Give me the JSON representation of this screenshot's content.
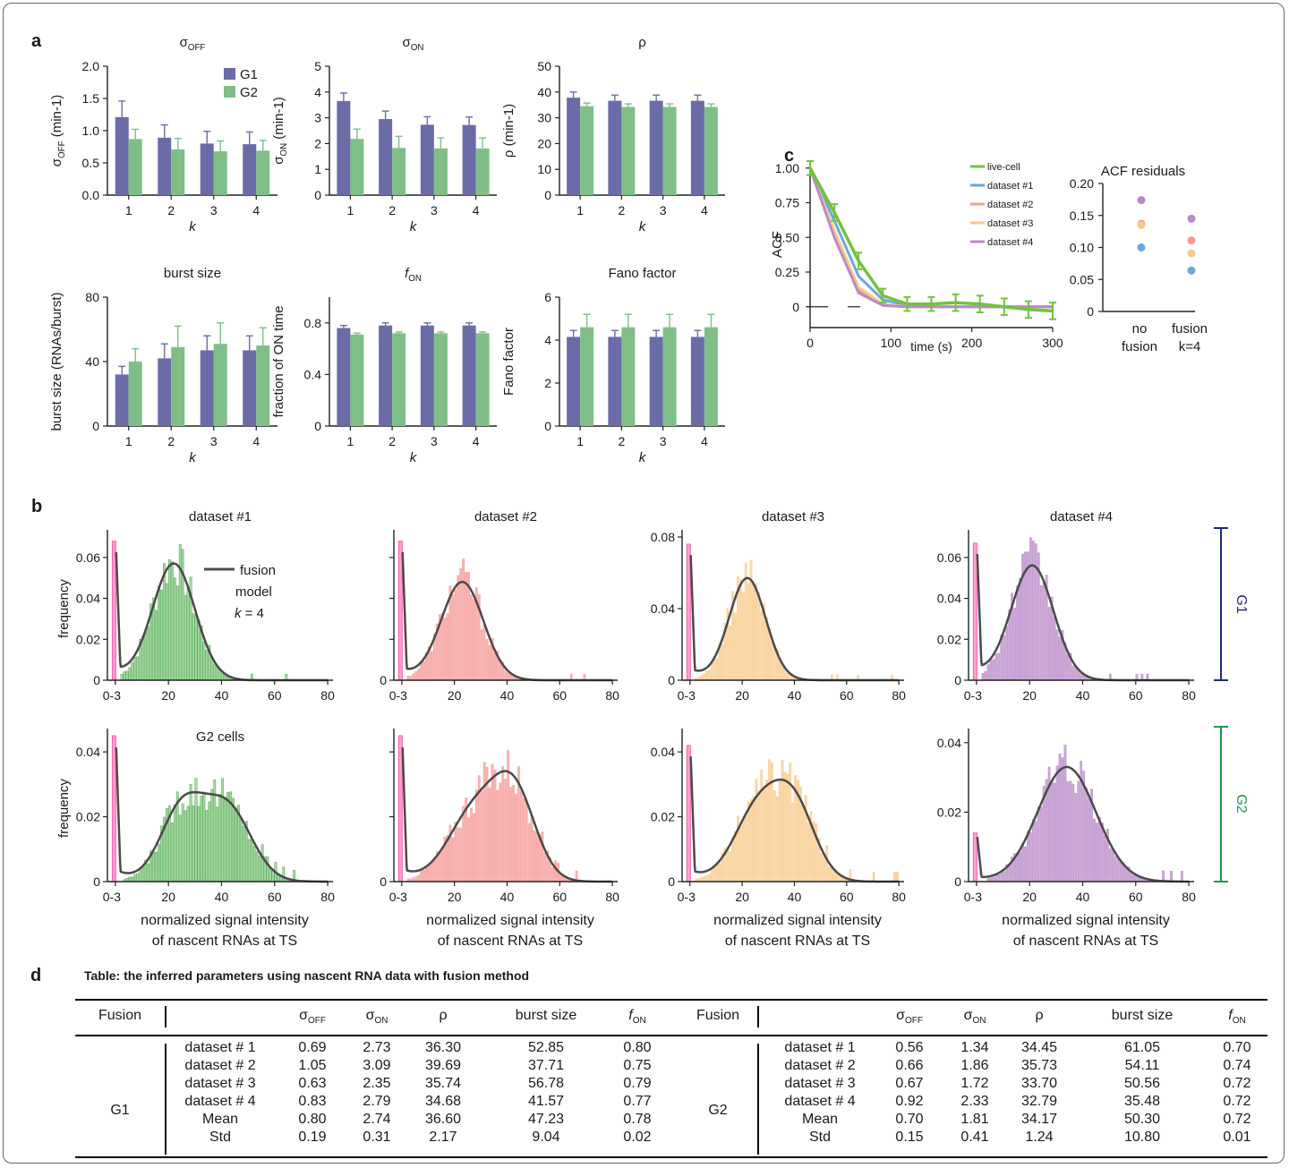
{
  "panel_letters": {
    "a": "a",
    "b": "b",
    "c": "c",
    "d": "d"
  },
  "colors": {
    "g1": "#6b6ba8",
    "g2": "#7fbf87",
    "g1_axis": "#1e2a7e",
    "g2_axis": "#1a9a4a",
    "zero_bin": "#ff5fae",
    "fit_line": "#4a4a4a",
    "ds1": "#86cc82",
    "ds2": "#f59a96",
    "ds3": "#f8c98a",
    "ds4": "#b98ac9",
    "live": "#72c23e",
    "ds1_line": "#6aa8dd"
  },
  "labels": {
    "k": "k",
    "x_hist": [
      "normalized signal intensity",
      "of nascent RNAs at TS"
    ],
    "frequency": "frequency",
    "g1_bracket": "G1",
    "g2_bracket": "G2",
    "g2_cells": "G2 cells",
    "fusion_legend": [
      "fusion",
      "model",
      "k = 4"
    ],
    "table_title": "Table: the inferred parameters using nascent RNA data with fusion method"
  },
  "chart_data": [
    {
      "id": "sigma_off",
      "type": "bar",
      "title": "σOFF",
      "ylabel": "σOFF (min-1)",
      "xlabel": "k",
      "categories": [
        "1",
        "2",
        "3",
        "4"
      ],
      "ylim": [
        0,
        2.0
      ],
      "yticks": [
        "0.0",
        "0.5",
        "1.0",
        "1.5",
        "2.0"
      ],
      "ytick_vals": [
        0,
        0.5,
        1.0,
        1.5,
        2.0
      ],
      "series": [
        {
          "name": "G1",
          "values": [
            1.21,
            0.89,
            0.8,
            0.79
          ],
          "errors": [
            0.25,
            0.2,
            0.19,
            0.19
          ]
        },
        {
          "name": "G2",
          "values": [
            0.87,
            0.71,
            0.68,
            0.69
          ],
          "errors": [
            0.15,
            0.17,
            0.16,
            0.16
          ]
        }
      ]
    },
    {
      "id": "sigma_on",
      "type": "bar",
      "title": "σON",
      "ylabel": "σON (min-1)",
      "xlabel": "k",
      "categories": [
        "1",
        "2",
        "3",
        "4"
      ],
      "ylim": [
        0,
        5
      ],
      "yticks": [
        "0",
        "1",
        "2",
        "3",
        "4",
        "5"
      ],
      "ytick_vals": [
        0,
        1,
        2,
        3,
        4,
        5
      ],
      "series": [
        {
          "name": "G1",
          "values": [
            3.65,
            2.95,
            2.73,
            2.72
          ],
          "errors": [
            0.31,
            0.31,
            0.31,
            0.31
          ]
        },
        {
          "name": "G2",
          "values": [
            2.18,
            1.83,
            1.81,
            1.81
          ],
          "errors": [
            0.38,
            0.45,
            0.41,
            0.41
          ]
        }
      ]
    },
    {
      "id": "rho",
      "type": "bar",
      "title": "ρ",
      "ylabel": "ρ (min-1)",
      "xlabel": "k",
      "categories": [
        "1",
        "2",
        "3",
        "4"
      ],
      "ylim": [
        0,
        50
      ],
      "yticks": [
        "0",
        "10",
        "20",
        "30",
        "40",
        "50"
      ],
      "ytick_vals": [
        0,
        10,
        20,
        30,
        40,
        50
      ],
      "series": [
        {
          "name": "G1",
          "values": [
            37.8,
            36.6,
            36.6,
            36.6
          ],
          "errors": [
            2.2,
            2.2,
            2.2,
            2.2
          ]
        },
        {
          "name": "G2",
          "values": [
            34.5,
            34.2,
            34.2,
            34.2
          ],
          "errors": [
            1.2,
            1.2,
            1.2,
            1.2
          ]
        }
      ]
    },
    {
      "id": "burst_size",
      "type": "bar",
      "title": "burst size",
      "ylabel": "burst size (RNAs/burst)",
      "xlabel": "k",
      "categories": [
        "1",
        "2",
        "3",
        "4"
      ],
      "ylim": [
        0,
        80
      ],
      "yticks": [
        "0",
        "40",
        "80"
      ],
      "ytick_vals": [
        0,
        40,
        80
      ],
      "series": [
        {
          "name": "G1",
          "values": [
            32,
            42,
            47,
            47
          ],
          "errors": [
            5,
            9,
            9,
            9
          ]
        },
        {
          "name": "G2",
          "values": [
            40,
            49,
            51,
            50
          ],
          "errors": [
            8,
            13,
            13,
            11
          ]
        }
      ]
    },
    {
      "id": "f_on",
      "type": "bar",
      "title": "fON",
      "ylabel": "fraction of ON time",
      "xlabel": "k",
      "categories": [
        "1",
        "2",
        "3",
        "4"
      ],
      "ylim": [
        0,
        1.0
      ],
      "yticks": [
        "0",
        "0.4",
        "0.8"
      ],
      "ytick_vals": [
        0,
        0.4,
        0.8
      ],
      "series": [
        {
          "name": "G1",
          "values": [
            0.76,
            0.78,
            0.78,
            0.78
          ],
          "errors": [
            0.02,
            0.02,
            0.02,
            0.02
          ]
        },
        {
          "name": "G2",
          "values": [
            0.71,
            0.72,
            0.72,
            0.72
          ],
          "errors": [
            0.01,
            0.01,
            0.01,
            0.01
          ]
        }
      ]
    },
    {
      "id": "fano",
      "type": "bar",
      "title": "Fano factor",
      "ylabel": "Fano factor",
      "xlabel": "k",
      "categories": [
        "1",
        "2",
        "3",
        "4"
      ],
      "ylim": [
        0,
        6
      ],
      "yticks": [
        "0",
        "2",
        "4",
        "6"
      ],
      "ytick_vals": [
        0,
        2,
        4,
        6
      ],
      "series": [
        {
          "name": "G1",
          "values": [
            4.15,
            4.15,
            4.15,
            4.15
          ],
          "errors": [
            0.3,
            0.3,
            0.3,
            0.3
          ]
        },
        {
          "name": "G2",
          "values": [
            4.6,
            4.6,
            4.6,
            4.6
          ],
          "errors": [
            0.6,
            0.6,
            0.6,
            0.6
          ]
        }
      ]
    },
    {
      "id": "acf",
      "type": "line",
      "ylabel": "ACF",
      "xlabel": "time (s)",
      "xlim": [
        0,
        300
      ],
      "ylim": [
        -0.15,
        1.05
      ],
      "xticks": [
        "0",
        "100",
        "200",
        "300"
      ],
      "xtick_vals": [
        0,
        100,
        200,
        300
      ],
      "yticks": [
        "0",
        "0.25",
        "0.50",
        "0.75",
        "1.00"
      ],
      "ytick_vals": [
        0,
        0.25,
        0.5,
        0.75,
        1.0
      ],
      "series": [
        {
          "name": "live-cell",
          "x": [
            0,
            30,
            60,
            90,
            120,
            150,
            180,
            210,
            240,
            270,
            300
          ],
          "y": [
            1.0,
            0.68,
            0.33,
            0.08,
            0.02,
            0.02,
            0.03,
            0.02,
            0.0,
            -0.02,
            -0.03
          ],
          "errors": [
            0.05,
            0.06,
            0.06,
            0.05,
            0.05,
            0.05,
            0.06,
            0.06,
            0.06,
            0.06,
            0.06
          ]
        },
        {
          "name": "dataset #1",
          "x": [
            0,
            30,
            60,
            90,
            120,
            150,
            180,
            210,
            240,
            270,
            300
          ],
          "y": [
            1.0,
            0.62,
            0.22,
            0.05,
            0.01,
            0.0,
            0.0,
            0.0,
            0.0,
            0.0,
            0.0
          ]
        },
        {
          "name": "dataset #2",
          "x": [
            0,
            30,
            60,
            90,
            120,
            150,
            180,
            210,
            240,
            270,
            300
          ],
          "y": [
            1.0,
            0.52,
            0.12,
            0.01,
            0.0,
            0.0,
            0.0,
            0.0,
            0.0,
            0.0,
            0.0
          ]
        },
        {
          "name": "dataset #3",
          "x": [
            0,
            30,
            60,
            90,
            120,
            150,
            180,
            210,
            240,
            270,
            300
          ],
          "y": [
            1.0,
            0.55,
            0.14,
            0.02,
            0.0,
            0.0,
            0.0,
            0.0,
            0.0,
            0.0,
            0.0
          ]
        },
        {
          "name": "dataset #4",
          "x": [
            0,
            30,
            60,
            90,
            120,
            150,
            180,
            210,
            240,
            270,
            300
          ],
          "y": [
            1.0,
            0.5,
            0.1,
            0.01,
            0.0,
            0.0,
            0.0,
            0.0,
            0.0,
            0.0,
            0.0
          ]
        }
      ]
    },
    {
      "id": "acf_residuals",
      "type": "scatter",
      "title": "ACF residuals",
      "categories": [
        "no\nfusion",
        "fusion\nk=4"
      ],
      "ylim": [
        0,
        0.2
      ],
      "yticks": [
        "0",
        "0.05",
        "0.10",
        "0.15",
        "0.20"
      ],
      "ytick_vals": [
        0,
        0.05,
        0.1,
        0.15,
        0.2
      ],
      "series": [
        {
          "name": "dataset #1",
          "values": [
            0.1,
            0.064
          ]
        },
        {
          "name": "dataset #2",
          "values": [
            0.137,
            0.111
          ]
        },
        {
          "name": "dataset #3",
          "values": [
            0.135,
            0.091
          ]
        },
        {
          "name": "dataset #4",
          "values": [
            0.174,
            0.145
          ]
        }
      ]
    },
    {
      "id": "hist_g1_ds1",
      "type": "bar",
      "title": "dataset #1",
      "xlim": [
        -3,
        82
      ],
      "ylim": [
        0,
        0.07
      ],
      "yticks": [
        "0",
        "0.02",
        "0.04",
        "0.06"
      ],
      "ytick_vals": [
        0,
        0.02,
        0.04,
        0.06
      ],
      "peaks": [
        [
          22,
          0.057,
          8
        ]
      ],
      "zero_bin": 0.068
    },
    {
      "id": "hist_g1_ds2",
      "type": "bar",
      "title": "dataset #2",
      "xlim": [
        -3,
        82
      ],
      "ylim": [
        0,
        0.07
      ],
      "yticks": [
        "0"
      ],
      "ytick_vals": [
        0
      ],
      "peaks": [
        [
          23,
          0.048,
          8
        ]
      ],
      "zero_bin": 0.068
    },
    {
      "id": "hist_g1_ds3",
      "type": "bar",
      "title": "dataset #3",
      "xlim": [
        -3,
        82
      ],
      "ylim": [
        0,
        0.08
      ],
      "yticks": [
        "0",
        "0.04",
        "0.08"
      ],
      "ytick_vals": [
        0,
        0.04,
        0.08
      ],
      "peaks": [
        [
          22,
          0.057,
          7
        ]
      ],
      "zero_bin": 0.076
    },
    {
      "id": "hist_g1_ds4",
      "type": "bar",
      "title": "dataset #4",
      "xlim": [
        -3,
        82
      ],
      "ylim": [
        0,
        0.07
      ],
      "yticks": [
        "0",
        "0.02",
        "0.04",
        "0.06"
      ],
      "ytick_vals": [
        0,
        0.02,
        0.04,
        0.06
      ],
      "peaks": [
        [
          21,
          0.056,
          8
        ]
      ],
      "zero_bin": 0.067
    },
    {
      "id": "hist_g2_ds1",
      "type": "bar",
      "title": "G2 cells",
      "xlim": [
        -3,
        82
      ],
      "ylim": [
        0,
        0.045
      ],
      "yticks": [
        "0",
        "0.02",
        "0.04"
      ],
      "ytick_vals": [
        0,
        0.02,
        0.04
      ],
      "peaks": [
        [
          25,
          0.022,
          8
        ],
        [
          42,
          0.023,
          9
        ]
      ],
      "zero_bin": 0.045
    },
    {
      "id": "hist_g2_ds2",
      "type": "bar",
      "title": "",
      "xlim": [
        -3,
        82
      ],
      "ylim": [
        0,
        0.045
      ],
      "yticks": [
        "0"
      ],
      "ytick_vals": [
        0
      ],
      "peaks": [
        [
          28,
          0.022,
          10
        ],
        [
          43,
          0.025,
          8
        ]
      ],
      "zero_bin": 0.045
    },
    {
      "id": "hist_g2_ds3",
      "type": "bar",
      "title": "",
      "xlim": [
        -3,
        82
      ],
      "ylim": [
        0,
        0.045
      ],
      "yticks": [
        "0",
        "0.02",
        "0.04"
      ],
      "ytick_vals": [
        0,
        0.02,
        0.04
      ],
      "peaks": [
        [
          26,
          0.022,
          9
        ],
        [
          40,
          0.022,
          8
        ]
      ],
      "zero_bin": 0.042
    },
    {
      "id": "hist_g2_ds4",
      "type": "bar",
      "title": "",
      "xlim": [
        -3,
        82
      ],
      "ylim": [
        0,
        0.042
      ],
      "yticks": [
        "0",
        "0.02",
        "0.04"
      ],
      "ytick_vals": [
        0,
        0.02,
        0.04
      ],
      "peaks": [
        [
          34,
          0.033,
          11
        ]
      ],
      "zero_bin": 0.014
    }
  ],
  "hist_xticks": [
    "0-3",
    "20",
    "40",
    "60",
    "80"
  ],
  "table": {
    "header_left": [
      "Fusion",
      "",
      "σOFF",
      "σON",
      "ρ",
      "burst size",
      "fON"
    ],
    "header_right": [
      "Fusion",
      "",
      "σOFF",
      "σON",
      "ρ",
      "burst size",
      "fON"
    ],
    "g1_label": "G1",
    "g2_label": "G2",
    "g1_rows": [
      [
        "dataset # 1",
        "0.69",
        "2.73",
        "36.30",
        "52.85",
        "0.80"
      ],
      [
        "dataset # 2",
        "1.05",
        "3.09",
        "39.69",
        "37.71",
        "0.75"
      ],
      [
        "dataset # 3",
        "0.63",
        "2.35",
        "35.74",
        "56.78",
        "0.79"
      ],
      [
        "dataset # 4",
        "0.83",
        "2.79",
        "34.68",
        "41.57",
        "0.77"
      ],
      [
        "Mean",
        "0.80",
        "2.74",
        "36.60",
        "47.23",
        "0.78"
      ],
      [
        "Std",
        "0.19",
        "0.31",
        "2.17",
        "9.04",
        "0.02"
      ]
    ],
    "g2_rows": [
      [
        "dataset # 1",
        "0.56",
        "1.34",
        "34.45",
        "61.05",
        "0.70"
      ],
      [
        "dataset # 2",
        "0.66",
        "1.86",
        "35.73",
        "54.11",
        "0.74"
      ],
      [
        "dataset # 3",
        "0.67",
        "1.72",
        "33.70",
        "50.56",
        "0.72"
      ],
      [
        "dataset # 4",
        "0.92",
        "2.33",
        "32.79",
        "35.48",
        "0.72"
      ],
      [
        "Mean",
        "0.70",
        "1.81",
        "34.17",
        "50.30",
        "0.72"
      ],
      [
        "Std",
        "0.15",
        "0.41",
        "1.24",
        "10.80",
        "0.01"
      ]
    ]
  }
}
